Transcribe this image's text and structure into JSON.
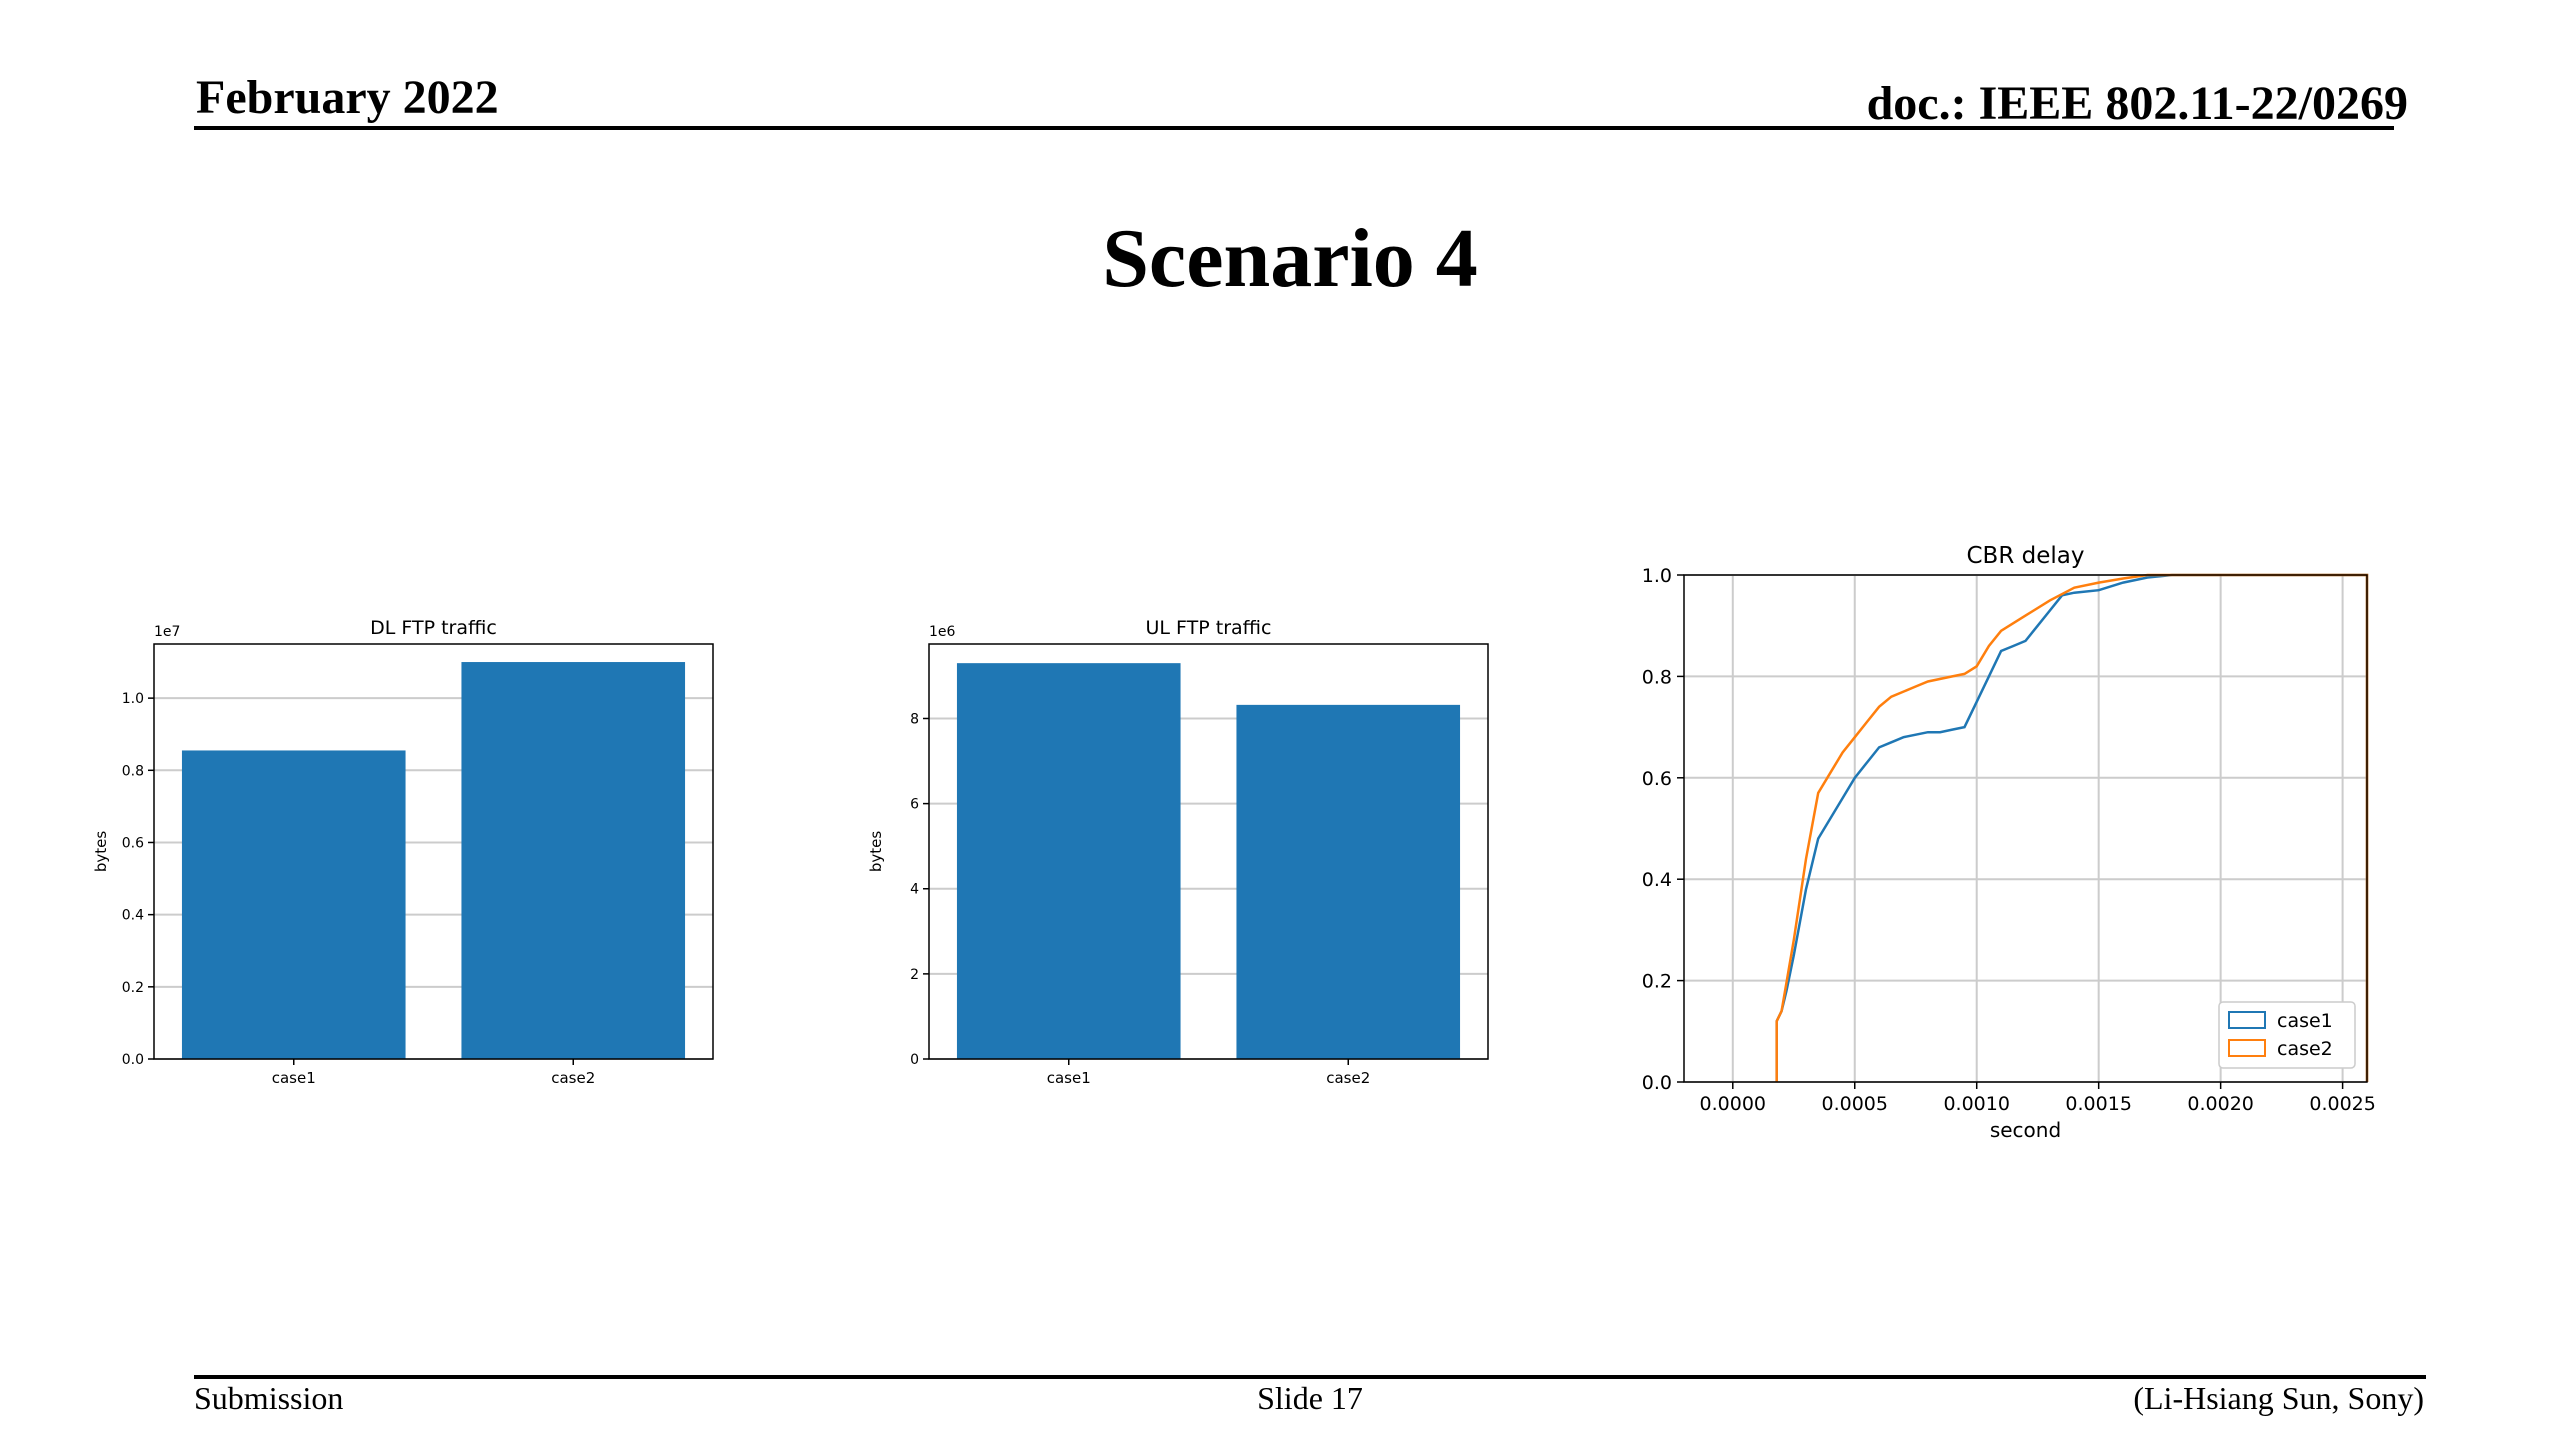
{
  "header": {
    "date": "February 2022",
    "doc": "doc.: IEEE 802.11-22/0269"
  },
  "slide": {
    "title": "Scenario 4"
  },
  "footer": {
    "left": "Submission",
    "center": "Slide 17",
    "right": "(Li-Hsiang Sun, Sony)"
  },
  "colors": {
    "bar": "#1f77b4",
    "case1": "#1f77b4",
    "case2": "#ff7f0e",
    "grid": "#cccccc"
  },
  "chart_data": [
    {
      "type": "bar",
      "title": "DL FTP traffic",
      "ylabel": "bytes",
      "xlabel": "",
      "offset_text": "1e7",
      "categories": [
        "case1",
        "case2"
      ],
      "values": [
        8550000,
        11000000
      ],
      "ylim": [
        0,
        11500000
      ],
      "yticks": [
        0,
        2000000,
        4000000,
        6000000,
        8000000,
        10000000
      ],
      "ytick_labels": [
        "0.0",
        "0.2",
        "0.4",
        "0.6",
        "0.8",
        "1.0"
      ],
      "grid": true
    },
    {
      "type": "bar",
      "title": "UL FTP traffic",
      "ylabel": "bytes",
      "xlabel": "",
      "offset_text": "1e6",
      "categories": [
        "case1",
        "case2"
      ],
      "values": [
        9300000,
        8320000
      ],
      "ylim": [
        0,
        9750000
      ],
      "yticks": [
        0,
        2000000,
        4000000,
        6000000,
        8000000
      ],
      "ytick_labels": [
        "0",
        "2",
        "4",
        "6",
        "8"
      ],
      "grid": true
    },
    {
      "type": "line",
      "title": "CBR delay",
      "xlabel": "second",
      "ylabel": "",
      "xlim": [
        -0.0002,
        0.0026
      ],
      "ylim": [
        0,
        1.0
      ],
      "xticks": [
        0,
        0.0005,
        0.001,
        0.0015,
        0.002,
        0.0025
      ],
      "xtick_labels": [
        "0.0000",
        "0.0005",
        "0.0010",
        "0.0015",
        "0.0020",
        "0.0025"
      ],
      "yticks": [
        0,
        0.2,
        0.4,
        0.6,
        0.8,
        1.0
      ],
      "ytick_labels": [
        "0.0",
        "0.2",
        "0.4",
        "0.6",
        "0.8",
        "1.0"
      ],
      "grid": true,
      "legend_position": "lower-right",
      "series": [
        {
          "name": "case1",
          "color": "#1f77b4",
          "x": [
            0.00018,
            0.00018,
            0.00018,
            0.0002,
            0.00022,
            0.00025,
            0.0003,
            0.00035,
            0.0004,
            0.00045,
            0.0005,
            0.00055,
            0.0006,
            0.00065,
            0.0007,
            0.0008,
            0.00085,
            0.0009,
            0.00095,
            0.001,
            0.00105,
            0.0011,
            0.00115,
            0.0012,
            0.00125,
            0.0013,
            0.00135,
            0.0014,
            0.0015,
            0.0016,
            0.0017,
            0.0018,
            0.002,
            0.0022,
            0.0026
          ],
          "y": [
            0,
            0.05,
            0.12,
            0.14,
            0.18,
            0.25,
            0.38,
            0.48,
            0.52,
            0.56,
            0.6,
            0.63,
            0.66,
            0.67,
            0.68,
            0.69,
            0.69,
            0.695,
            0.7,
            0.75,
            0.8,
            0.85,
            0.86,
            0.87,
            0.9,
            0.93,
            0.96,
            0.965,
            0.97,
            0.985,
            0.995,
            1.0,
            1.0,
            1.0,
            1.0
          ]
        },
        {
          "name": "case2",
          "color": "#ff7f0e",
          "x": [
            0.00018,
            0.00018,
            0.00018,
            0.0002,
            0.00025,
            0.0003,
            0.00035,
            0.0004,
            0.00045,
            0.0005,
            0.00055,
            0.0006,
            0.00065,
            0.0007,
            0.00075,
            0.0008,
            0.0009,
            0.00095,
            0.001,
            0.00105,
            0.0011,
            0.0012,
            0.0013,
            0.0014,
            0.0015,
            0.0016,
            0.0017,
            0.0018,
            0.002,
            0.0022,
            0.0026
          ],
          "y": [
            0,
            0.05,
            0.12,
            0.14,
            0.28,
            0.44,
            0.57,
            0.61,
            0.65,
            0.68,
            0.71,
            0.74,
            0.76,
            0.77,
            0.78,
            0.79,
            0.8,
            0.805,
            0.82,
            0.86,
            0.89,
            0.92,
            0.95,
            0.975,
            0.985,
            0.993,
            1.0,
            1.0,
            1.0,
            1.0,
            1.0
          ]
        }
      ]
    }
  ]
}
